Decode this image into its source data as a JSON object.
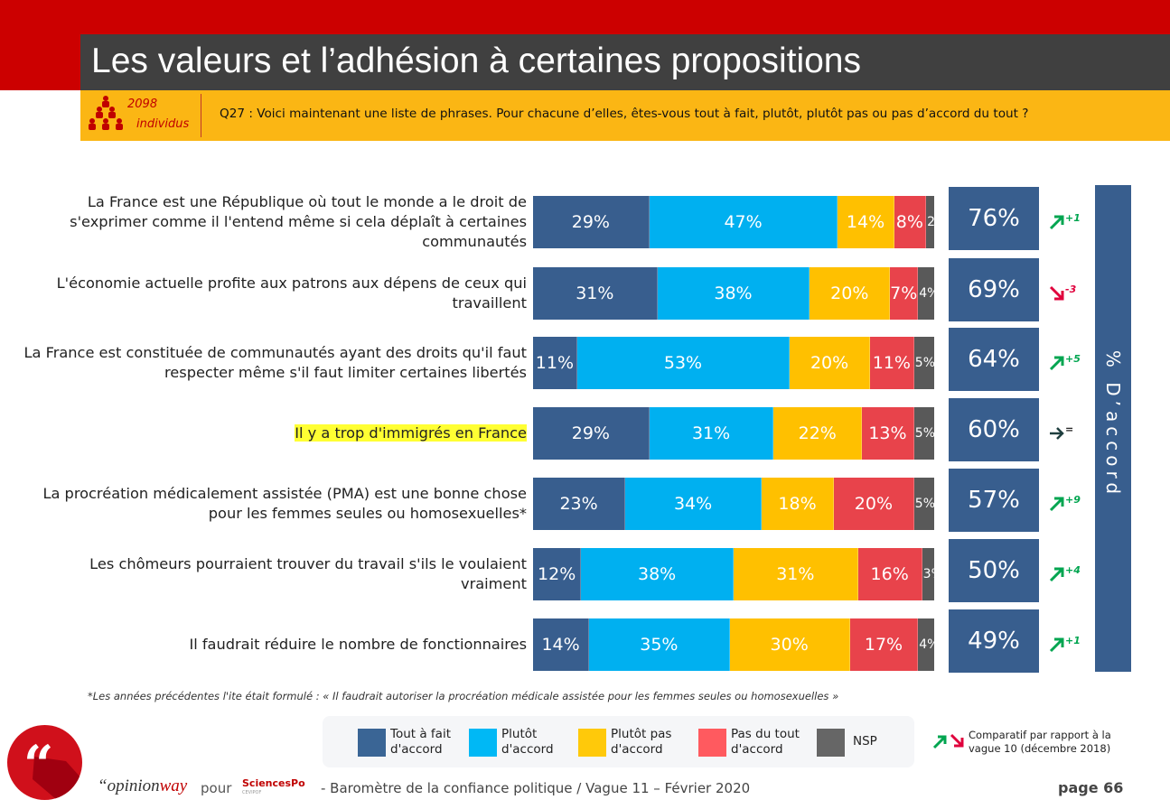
{
  "header": {
    "title": "Les valeurs et l’adhésion à certaines propositions",
    "sample_size": "2098",
    "sample_label": "individus",
    "question": "Q27 : Voici maintenant une liste de phrases. Pour chacune d’elles, êtes-vous tout à fait, plutôt, plutôt pas ou pas d’accord du tout ?"
  },
  "colors": {
    "tout_a_fait": "#385e8e",
    "plutot": "#00b0f0",
    "plutot_pas": "#ffc000",
    "pas_du_tout": "#e8434b",
    "nsp": "#595959",
    "up": "#00a550",
    "down": "#e0003c",
    "flat": "#1f3f3f"
  },
  "chart_data": {
    "type": "bar",
    "orientation": "horizontal-stacked-100",
    "title": "Les valeurs et l’adhésion à certaines propositions",
    "categories": [
      "La France est une République où tout le monde a le droit de s'exprimer comme il l'entend même si cela déplaît à certaines communautés",
      "L'économie actuelle profite aux patrons aux dépens de ceux qui travaillent",
      "La France est constituée de communautés ayant des droits qu'il faut respecter même s'il faut limiter certaines libertés",
      "Il y a trop d'immigrés en France",
      "La procréation médicalement assistée (PMA) est une bonne chose pour les femmes seules ou homosexuelles*",
      "Les chômeurs pourraient trouver du travail s'ils le voulaient vraiment",
      "Il faudrait réduire le nombre de fonctionnaires"
    ],
    "label_lines": [
      [
        "La France est une République où tout le monde a le droit de",
        "s'exprimer comme il l'entend même si cela déplaît à certaines",
        "communautés"
      ],
      [
        "L'économie actuelle profite aux patrons aux dépens de ceux qui",
        "travaillent"
      ],
      [
        "La France est constituée de communautés ayant des droits qu'il faut",
        "respecter même s'il faut limiter certaines libertés"
      ],
      [
        "Il y a trop d'immigrés en France"
      ],
      [
        "La procréation médicalement assistée (PMA) est une bonne chose",
        "pour les femmes seules ou homosexuelles*"
      ],
      [
        "Les chômeurs pourraient trouver du travail s'ils le voulaient",
        "vraiment"
      ],
      [
        "Il faudrait réduire le nombre de fonctionnaires"
      ]
    ],
    "highlighted_index": 3,
    "series": [
      {
        "name": "Tout à fait d'accord",
        "key": "tout_a_fait",
        "values": [
          29,
          31,
          11,
          29,
          23,
          12,
          14
        ]
      },
      {
        "name": "Plutôt d'accord",
        "key": "plutot",
        "values": [
          47,
          38,
          53,
          31,
          34,
          38,
          35
        ]
      },
      {
        "name": "Plutôt pas d'accord",
        "key": "plutot_pas",
        "values": [
          14,
          20,
          20,
          22,
          18,
          31,
          30
        ]
      },
      {
        "name": "Pas du tout d'accord",
        "key": "pas_du_tout",
        "values": [
          8,
          7,
          11,
          13,
          20,
          16,
          17
        ]
      },
      {
        "name": "NSP",
        "key": "nsp",
        "values": [
          2,
          4,
          5,
          5,
          5,
          3,
          4
        ]
      }
    ],
    "total_agree": {
      "label": "% D’accord",
      "values": [
        76,
        69,
        64,
        60,
        57,
        50,
        49
      ]
    },
    "trend_vs_previous_wave": [
      {
        "direction": "up",
        "delta": "+1"
      },
      {
        "direction": "down",
        "delta": "-3"
      },
      {
        "direction": "up",
        "delta": "+5"
      },
      {
        "direction": "flat",
        "delta": "="
      },
      {
        "direction": "up",
        "delta": "+9"
      },
      {
        "direction": "up",
        "delta": "+4"
      },
      {
        "direction": "up",
        "delta": "+1"
      }
    ],
    "unit": "%",
    "xlim": [
      0,
      100
    ],
    "legend_position": "bottom"
  },
  "legend": {
    "items": [
      {
        "line1": "Tout à fait",
        "line2": "d'accord",
        "key": "tout_a_fait"
      },
      {
        "line1": "Plutôt",
        "line2": "d'accord",
        "key": "plutot"
      },
      {
        "line1": "Plutôt pas",
        "line2": "d'accord",
        "key": "plutot_pas"
      },
      {
        "line1": "Pas du tout",
        "line2": " d'accord",
        "key": "pas_du_tout"
      },
      {
        "line1": "NSP",
        "line2": "",
        "key": "nsp"
      }
    ],
    "compare_line1": "Comparatif par rapport à la",
    "compare_line2": "vague 10 (décembre 2018)"
  },
  "footnote": "*Les années précédentes l'ite était formulé : « Il faudrait autoriser la procréation médicale assistée pour les femmes seules ou homosexuelles »",
  "footer": {
    "brand_prefix": "“opinion",
    "brand_suffix": "way",
    "pour": "pour",
    "partner": "SciencesPo",
    "partner_sub": "CEVIPOF",
    "title": "-  Baromètre de la confiance politique / Vague 11 – Février 2020",
    "page": "page 66",
    "logo_glyph": "“"
  }
}
